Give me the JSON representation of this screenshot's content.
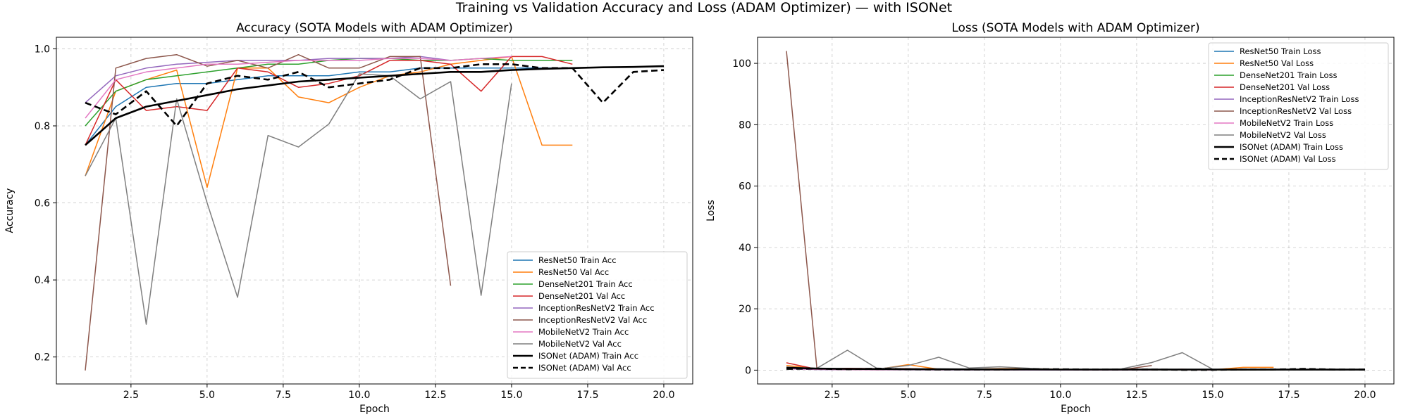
{
  "suptitle": "Training vs Validation Accuracy and Loss (ADAM Optimizer) — with ISONet",
  "chart_data": [
    {
      "type": "line",
      "title": "Accuracy (SOTA Models with ADAM Optimizer)",
      "xlabel": "Epoch",
      "ylabel": "Accuracy",
      "xlim": [
        0.05,
        20.95
      ],
      "ylim": [
        0.13,
        1.03
      ],
      "xticks": [
        2.5,
        5.0,
        7.5,
        10.0,
        12.5,
        15.0,
        17.5,
        20.0
      ],
      "xtick_labels": [
        "2.5",
        "5.0",
        "7.5",
        "10.0",
        "12.5",
        "15.0",
        "17.5",
        "20.0"
      ],
      "yticks": [
        0.2,
        0.4,
        0.6,
        0.8,
        1.0
      ],
      "ytick_labels": [
        "0.2",
        "0.4",
        "0.6",
        "0.8",
        "1.0"
      ],
      "grid": true,
      "legend_position": "lower-right",
      "series": [
        {
          "name": "ResNet50 Train Acc",
          "color": "#1f77b4",
          "dash": "solid",
          "width": 1.5,
          "x": [
            1,
            2,
            3,
            4,
            5,
            6,
            7,
            8,
            9,
            10,
            11,
            12,
            13,
            14,
            15,
            16,
            17
          ],
          "y": [
            0.75,
            0.85,
            0.9,
            0.91,
            0.91,
            0.92,
            0.93,
            0.93,
            0.93,
            0.94,
            0.94,
            0.95,
            0.95,
            0.95,
            0.95,
            0.95,
            0.95
          ]
        },
        {
          "name": "ResNet50 Val Acc",
          "color": "#ff7f0e",
          "dash": "solid",
          "width": 1.5,
          "x": [
            1,
            2,
            3,
            4,
            5,
            6,
            7,
            8,
            9,
            10,
            11,
            12,
            13,
            14,
            15,
            16,
            17
          ],
          "y": [
            0.67,
            0.89,
            0.92,
            0.945,
            0.64,
            0.95,
            0.95,
            0.875,
            0.86,
            0.9,
            0.93,
            0.94,
            0.96,
            0.97,
            0.98,
            0.75,
            0.75
          ]
        },
        {
          "name": "DenseNet201 Train Acc",
          "color": "#2ca02c",
          "dash": "solid",
          "width": 1.5,
          "x": [
            1,
            2,
            3,
            4,
            5,
            6,
            7,
            8,
            9,
            10,
            11,
            12,
            13,
            14,
            15,
            16,
            17
          ],
          "y": [
            0.8,
            0.89,
            0.92,
            0.93,
            0.94,
            0.95,
            0.96,
            0.96,
            0.97,
            0.975,
            0.975,
            0.97,
            0.97,
            0.975,
            0.97,
            0.97,
            0.97
          ]
        },
        {
          "name": "DenseNet201 Val Acc",
          "color": "#d62728",
          "dash": "solid",
          "width": 1.5,
          "x": [
            1,
            2,
            3,
            4,
            5,
            6,
            7,
            8,
            9,
            10,
            11,
            12,
            13,
            14,
            15,
            16,
            17
          ],
          "y": [
            0.75,
            0.92,
            0.84,
            0.85,
            0.84,
            0.95,
            0.94,
            0.9,
            0.91,
            0.93,
            0.97,
            0.97,
            0.96,
            0.89,
            0.98,
            0.98,
            0.96
          ]
        },
        {
          "name": "InceptionResNetV2 Train Acc",
          "color": "#9467bd",
          "dash": "solid",
          "width": 1.5,
          "x": [
            1,
            2,
            3,
            4,
            5,
            6,
            7,
            8,
            9,
            10,
            11,
            12,
            13
          ],
          "y": [
            0.86,
            0.93,
            0.95,
            0.96,
            0.965,
            0.97,
            0.97,
            0.97,
            0.975,
            0.975,
            0.975,
            0.98,
            0.97
          ]
        },
        {
          "name": "InceptionResNetV2 Val Acc",
          "color": "#8c564b",
          "dash": "solid",
          "width": 1.5,
          "x": [
            1,
            2,
            3,
            4,
            5,
            6,
            7,
            8,
            9,
            10,
            11,
            12,
            13
          ],
          "y": [
            0.165,
            0.95,
            0.975,
            0.985,
            0.955,
            0.97,
            0.95,
            0.985,
            0.95,
            0.95,
            0.98,
            0.98,
            0.385
          ]
        },
        {
          "name": "MobileNetV2 Train Acc",
          "color": "#e377c2",
          "dash": "solid",
          "width": 1.5,
          "x": [
            1,
            2,
            3,
            4,
            5,
            6,
            7,
            8,
            9,
            10,
            11,
            12,
            13,
            14,
            15
          ],
          "y": [
            0.82,
            0.92,
            0.94,
            0.95,
            0.96,
            0.96,
            0.965,
            0.97,
            0.97,
            0.97,
            0.975,
            0.975,
            0.97,
            0.975,
            0.98
          ]
        },
        {
          "name": "MobileNetV2 Val Acc",
          "color": "#7f7f7f",
          "dash": "solid",
          "width": 1.5,
          "x": [
            1,
            2,
            3,
            4,
            5,
            6,
            7,
            8,
            9,
            10,
            11,
            12,
            13,
            14,
            15
          ],
          "y": [
            0.67,
            0.82,
            0.285,
            0.87,
            0.6,
            0.355,
            0.775,
            0.745,
            0.805,
            0.935,
            0.93,
            0.87,
            0.915,
            0.36,
            0.91
          ]
        },
        {
          "name": "ISONet (ADAM) Train Acc",
          "color": "#000000",
          "dash": "solid",
          "width": 2.6,
          "x": [
            1,
            2,
            3,
            4,
            5,
            6,
            7,
            8,
            9,
            10,
            11,
            12,
            13,
            14,
            15,
            16,
            17,
            18,
            19,
            20
          ],
          "y": [
            0.75,
            0.82,
            0.85,
            0.865,
            0.88,
            0.895,
            0.905,
            0.915,
            0.92,
            0.925,
            0.93,
            0.935,
            0.94,
            0.94,
            0.945,
            0.948,
            0.95,
            0.952,
            0.953,
            0.955
          ]
        },
        {
          "name": "ISONet (ADAM) Val Acc",
          "color": "#000000",
          "dash": "dashed",
          "width": 2.6,
          "x": [
            1,
            2,
            3,
            4,
            5,
            6,
            7,
            8,
            9,
            10,
            11,
            12,
            13,
            14,
            15,
            16,
            17,
            18,
            19,
            20
          ],
          "y": [
            0.86,
            0.83,
            0.89,
            0.8,
            0.91,
            0.93,
            0.92,
            0.94,
            0.9,
            0.91,
            0.92,
            0.95,
            0.95,
            0.96,
            0.96,
            0.95,
            0.95,
            0.86,
            0.94,
            0.945
          ]
        }
      ]
    },
    {
      "type": "line",
      "title": "Loss (SOTA Models with ADAM Optimizer)",
      "xlabel": "Epoch",
      "ylabel": "Loss",
      "xlim": [
        0.05,
        20.95
      ],
      "ylim": [
        -4.5,
        108.5
      ],
      "xticks": [
        2.5,
        5.0,
        7.5,
        10.0,
        12.5,
        15.0,
        17.5,
        20.0
      ],
      "xtick_labels": [
        "2.5",
        "5.0",
        "7.5",
        "10.0",
        "12.5",
        "15.0",
        "17.5",
        "20.0"
      ],
      "yticks": [
        0,
        20,
        40,
        60,
        80,
        100
      ],
      "ytick_labels": [
        "0",
        "20",
        "40",
        "60",
        "80",
        "100"
      ],
      "grid": true,
      "legend_position": "top-right",
      "series": [
        {
          "name": "ResNet50 Train Loss",
          "color": "#1f77b4",
          "dash": "solid",
          "width": 1.5,
          "x": [
            1,
            2,
            3,
            4,
            5,
            6,
            7,
            8,
            9,
            10,
            11,
            12,
            13,
            14,
            15,
            16,
            17
          ],
          "y": [
            0.7,
            0.4,
            0.3,
            0.25,
            0.25,
            0.2,
            0.2,
            0.2,
            0.18,
            0.17,
            0.16,
            0.15,
            0.15,
            0.15,
            0.14,
            0.14,
            0.14
          ]
        },
        {
          "name": "ResNet50 Val Loss",
          "color": "#ff7f0e",
          "dash": "solid",
          "width": 1.5,
          "x": [
            1,
            2,
            3,
            4,
            5,
            6,
            7,
            8,
            9,
            10,
            11,
            12,
            13,
            14,
            15,
            16,
            17
          ],
          "y": [
            1.5,
            0.5,
            0.3,
            0.3,
            1.8,
            0.3,
            0.3,
            0.5,
            0.5,
            0.3,
            0.25,
            0.2,
            0.15,
            0.15,
            0.1,
            0.9,
            0.9
          ]
        },
        {
          "name": "DenseNet201 Train Loss",
          "color": "#2ca02c",
          "dash": "solid",
          "width": 1.5,
          "x": [
            1,
            2,
            3,
            4,
            5,
            6,
            7,
            8,
            9,
            10,
            11,
            12,
            13,
            14,
            15,
            16,
            17
          ],
          "y": [
            0.6,
            0.3,
            0.2,
            0.2,
            0.15,
            0.15,
            0.12,
            0.1,
            0.1,
            0.08,
            0.08,
            0.08,
            0.08,
            0.07,
            0.08,
            0.08,
            0.08
          ]
        },
        {
          "name": "DenseNet201 Val Loss",
          "color": "#d62728",
          "dash": "solid",
          "width": 1.5,
          "x": [
            1,
            2,
            3,
            4,
            5,
            6,
            7,
            8,
            9,
            10,
            11,
            12,
            13,
            14,
            15,
            16,
            17
          ],
          "y": [
            2.4,
            0.3,
            0.6,
            0.5,
            0.5,
            0.2,
            0.2,
            0.3,
            0.3,
            0.2,
            0.1,
            0.1,
            0.1,
            0.3,
            0.1,
            0.1,
            0.1
          ]
        },
        {
          "name": "InceptionResNetV2 Train Loss",
          "color": "#9467bd",
          "dash": "solid",
          "width": 1.5,
          "x": [
            1,
            2,
            3,
            4,
            5,
            6,
            7,
            8,
            9,
            10,
            11,
            12,
            13
          ],
          "y": [
            0.4,
            0.2,
            0.15,
            0.1,
            0.1,
            0.08,
            0.08,
            0.08,
            0.07,
            0.07,
            0.07,
            0.06,
            0.08
          ]
        },
        {
          "name": "InceptionResNetV2 Val Loss",
          "color": "#8c564b",
          "dash": "solid",
          "width": 1.5,
          "x": [
            1,
            2,
            3,
            4,
            5,
            6,
            7,
            8,
            9,
            10,
            11,
            12,
            13
          ],
          "y": [
            104,
            0.3,
            0.2,
            0.1,
            0.2,
            0.1,
            0.2,
            0.1,
            0.2,
            0.2,
            0.1,
            0.1,
            1.5
          ]
        },
        {
          "name": "MobileNetV2 Train Loss",
          "color": "#e377c2",
          "dash": "solid",
          "width": 1.5,
          "x": [
            1,
            2,
            3,
            4,
            5,
            6,
            7,
            8,
            9,
            10,
            11,
            12,
            13,
            14,
            15
          ],
          "y": [
            0.5,
            0.25,
            0.2,
            0.15,
            0.12,
            0.12,
            0.1,
            0.1,
            0.1,
            0.1,
            0.08,
            0.08,
            0.1,
            0.08,
            0.06
          ]
        },
        {
          "name": "MobileNetV2 Val Loss",
          "color": "#7f7f7f",
          "dash": "solid",
          "width": 1.5,
          "x": [
            1,
            2,
            3,
            4,
            5,
            6,
            7,
            8,
            9,
            10,
            11,
            12,
            13,
            14,
            15
          ],
          "y": [
            1.0,
            0.6,
            6.5,
            0.4,
            1.5,
            4.2,
            0.7,
            1.1,
            0.6,
            0.2,
            0.2,
            0.4,
            2.5,
            5.7,
            0.3
          ]
        },
        {
          "name": "ISONet (ADAM) Train Loss",
          "color": "#000000",
          "dash": "solid",
          "width": 2.6,
          "x": [
            1,
            2,
            3,
            4,
            5,
            6,
            7,
            8,
            9,
            10,
            11,
            12,
            13,
            14,
            15,
            16,
            17,
            18,
            19,
            20
          ],
          "y": [
            0.8,
            0.5,
            0.4,
            0.35,
            0.3,
            0.3,
            0.25,
            0.25,
            0.25,
            0.2,
            0.2,
            0.2,
            0.2,
            0.2,
            0.2,
            0.18,
            0.18,
            0.18,
            0.18,
            0.17
          ]
        },
        {
          "name": "ISONet (ADAM) Val Loss",
          "color": "#000000",
          "dash": "dashed",
          "width": 2.6,
          "x": [
            1,
            2,
            3,
            4,
            5,
            6,
            7,
            8,
            9,
            10,
            11,
            12,
            13,
            14,
            15,
            16,
            17,
            18,
            19,
            20
          ],
          "y": [
            0.4,
            0.5,
            0.3,
            0.5,
            0.3,
            0.2,
            0.2,
            0.2,
            0.3,
            0.3,
            0.2,
            0.2,
            0.2,
            0.1,
            0.1,
            0.2,
            0.2,
            0.4,
            0.2,
            0.2
          ]
        }
      ]
    }
  ]
}
